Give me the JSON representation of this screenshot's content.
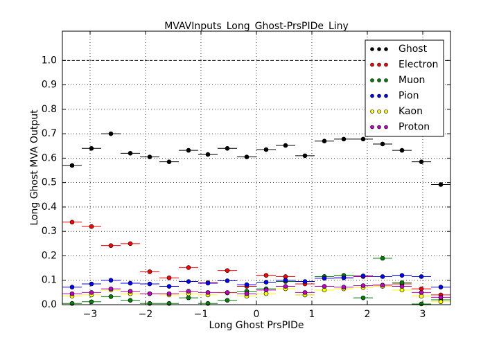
{
  "chart_data": {
    "type": "scatter",
    "title": "MVAVInputs_Long_Ghost-PrsPIDe_Liny",
    "xlabel": "Long Ghost PrsPIDe",
    "ylabel": "Long Ghost MVA Output",
    "x": [
      -3.325,
      -2.975,
      -2.625,
      -2.275,
      -1.925,
      -1.575,
      -1.225,
      -0.875,
      -0.525,
      -0.175,
      0.175,
      0.525,
      0.875,
      1.225,
      1.575,
      1.925,
      2.275,
      2.625,
      2.975,
      3.325
    ],
    "xerr": 0.175,
    "series": [
      {
        "name": "Ghost",
        "color": "#000000",
        "values": [
          0.57,
          0.64,
          0.7,
          0.62,
          0.605,
          0.585,
          0.632,
          0.615,
          0.64,
          0.605,
          0.635,
          0.652,
          0.61,
          0.67,
          0.678,
          0.678,
          0.658,
          0.632,
          0.585,
          0.492
        ]
      },
      {
        "name": "Electron",
        "color": "#ff0000",
        "values": [
          0.338,
          0.32,
          0.242,
          0.25,
          0.135,
          0.11,
          0.152,
          0.09,
          0.14,
          0.075,
          0.12,
          0.115,
          0.085,
          0.115,
          0.11,
          0.115,
          0.08,
          0.085,
          0.065,
          0.04
        ]
      },
      {
        "name": "Muon",
        "color": "#008000",
        "values": [
          0.005,
          0.012,
          0.033,
          0.018,
          0.005,
          0.005,
          0.028,
          0.005,
          0.018,
          0.055,
          0.065,
          0.095,
          0.04,
          0.115,
          0.12,
          0.028,
          0.19,
          0.09,
          0.003,
          0.02
        ]
      },
      {
        "name": "Pion",
        "color": "#0000ff",
        "values": [
          0.072,
          0.085,
          0.1,
          0.088,
          0.085,
          0.075,
          0.095,
          0.088,
          0.098,
          0.082,
          0.092,
          0.1,
          0.095,
          0.108,
          0.11,
          0.118,
          0.115,
          0.12,
          0.115,
          0.072
        ]
      },
      {
        "name": "Kaon",
        "color": "#ffff00",
        "values": [
          0.035,
          0.04,
          0.06,
          0.045,
          0.045,
          0.04,
          0.045,
          0.04,
          0.048,
          0.035,
          0.045,
          0.065,
          0.04,
          0.06,
          0.065,
          0.07,
          0.075,
          0.06,
          0.035,
          0.012
        ]
      },
      {
        "name": "Proton",
        "color": "#bf00bf",
        "values": [
          0.045,
          0.05,
          0.065,
          0.055,
          0.045,
          0.045,
          0.055,
          0.05,
          0.05,
          0.045,
          0.06,
          0.075,
          0.05,
          0.075,
          0.072,
          0.078,
          0.08,
          0.075,
          0.05,
          0.03
        ]
      }
    ],
    "hline": 1.0,
    "xlim": [
      -3.5,
      3.5
    ],
    "ylim": [
      0,
      1.12
    ],
    "xticks": [
      {
        "value": -3,
        "label": "−3"
      },
      {
        "value": -2,
        "label": "−2"
      },
      {
        "value": -1,
        "label": "−1"
      },
      0,
      1,
      2,
      3
    ],
    "yticks": [
      {
        "value": 0,
        "label": "0.0"
      },
      0.1,
      0.2,
      0.3,
      0.4,
      0.5,
      0.6,
      0.7,
      0.8,
      0.9,
      {
        "value": 1,
        "label": "1.0"
      }
    ],
    "grid": true,
    "legend": "upper right"
  }
}
